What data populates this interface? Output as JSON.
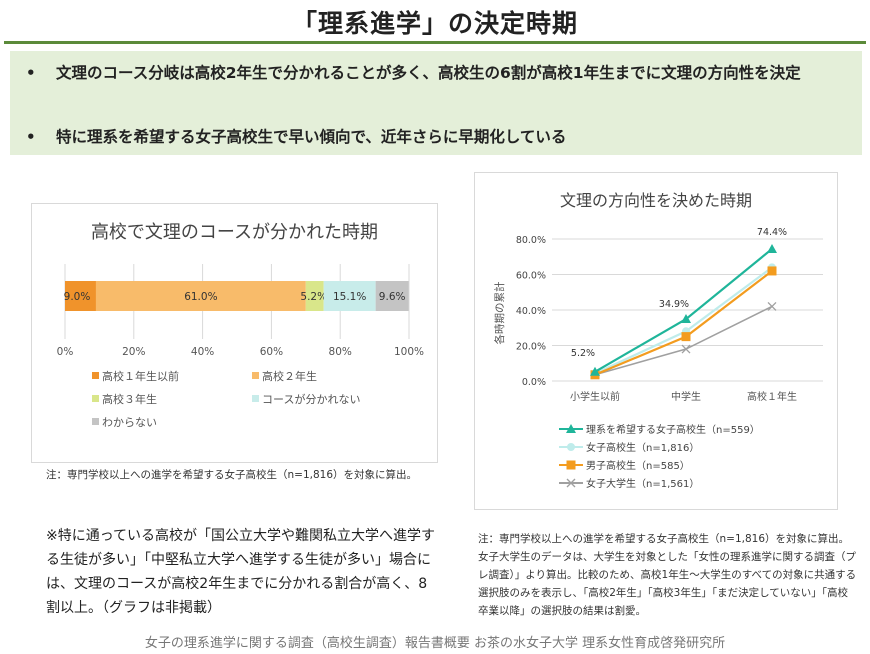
{
  "header": {
    "title": "「理系進学」の決定時期"
  },
  "summary": {
    "bullet": "•",
    "points": [
      "文理のコース分岐は高校2年生で分かれることが多く、高校生の6割が高校1年生までに文理の方向性を決定",
      "特に理系を希望する女子高校生で早い傾向で、近年さらに早期化している"
    ]
  },
  "left_panel": {
    "note": "注：専門学校以上への進学を希望する女子高校生（n=1,816）を対象に算出。"
  },
  "right_panel": {
    "note": "注：専門学校以上への進学を希望する女子高校生（n=1,816）を対象に算出。女子大学生のデータは、大学生を対象とした「女性の理系進学に関する調査（プレ調査）」より算出。比較のため、高校1年生～大学生のすべての対象に共通する選択肢のみを表示し、「高校2年生」「高校3年生」「まだ決定していない」「高校卒業以降」の選択肢の結果は割愛。"
  },
  "remark": "※特に通っている高校が「国公立大学や難関私立大学へ進学する生徒が多い」「中堅私立大学へ進学する生徒が多い」場合には、文理のコースが高校2年生までに分かれる割合が高く、8割以上。（グラフは非掲載）",
  "footer": "女子の理系進学に関する調査（高校生調査）報告書概要 お茶の水女子大学 理系女性育成啓発研究所",
  "chart_data": [
    {
      "type": "bar",
      "orientation": "horizontal-stacked-100",
      "title": "高校で文理のコースが分かれた時期",
      "categories": [
        "高校１年生以前",
        "高校２年生",
        "高校３年生",
        "コースが分かれない",
        "わからない"
      ],
      "values": [
        9.0,
        61.0,
        5.2,
        15.1,
        9.6
      ],
      "labels": [
        "9.0%",
        "61.0%",
        "5.2%",
        "15.1%",
        "9.6%"
      ],
      "colors": [
        "#f0932b",
        "#f8bb6a",
        "#d9e68a",
        "#c8ecea",
        "#c4c4c4"
      ],
      "xticks": [
        "0%",
        "20%",
        "40%",
        "60%",
        "80%",
        "100%"
      ],
      "xlim": [
        0,
        100
      ],
      "grid": true,
      "legend_position": "bottom"
    },
    {
      "type": "line",
      "title": "文理の方向性を決めた時期",
      "x": [
        "小学生以前",
        "中学生",
        "高校１年生"
      ],
      "ylabel": "各時期の累計",
      "yticks": [
        "0.0%",
        "20.0%",
        "40.0%",
        "60.0%",
        "80.0%"
      ],
      "ylim": [
        0,
        80
      ],
      "grid": true,
      "legend_position": "bottom",
      "series": [
        {
          "name": "理系を希望する女子高校生（n=559）",
          "values": [
            5.2,
            34.9,
            74.4
          ],
          "color": "#1fb59a",
          "marker": "triangle",
          "labels": [
            "5.2%",
            "34.9%",
            "74.4%"
          ]
        },
        {
          "name": "女子高校生（n=1,816）",
          "values": [
            4.2,
            28.0,
            64.0
          ],
          "color": "#bfeceb",
          "marker": "circle"
        },
        {
          "name": "男子高校生（n=585）",
          "values": [
            3.5,
            25.0,
            62.0
          ],
          "color": "#f39c1f",
          "marker": "square"
        },
        {
          "name": "女子大学生（n=1,561）",
          "values": [
            3.5,
            18.0,
            42.0
          ],
          "color": "#a0a0a0",
          "marker": "x"
        }
      ]
    }
  ]
}
